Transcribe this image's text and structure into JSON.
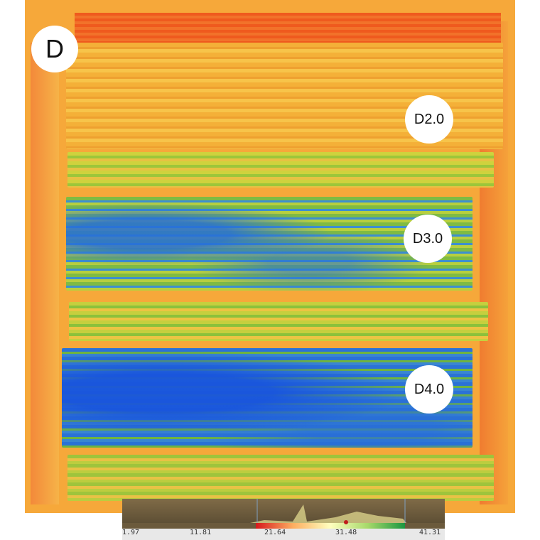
{
  "panel": {
    "label": "D"
  },
  "plots": [
    {
      "id": "d2",
      "label": "D2.0"
    },
    {
      "id": "d3",
      "label": "D3.0"
    },
    {
      "id": "d4",
      "label": "D4.0"
    }
  ],
  "scale": {
    "ticks": [
      "1.97",
      "11.81",
      "21.64",
      "31.48",
      "41.31"
    ],
    "colors": [
      "#d7191c",
      "#fdae61",
      "#ffffbf",
      "#a6d96a",
      "#1a9641",
      "#2b72d6"
    ]
  }
}
